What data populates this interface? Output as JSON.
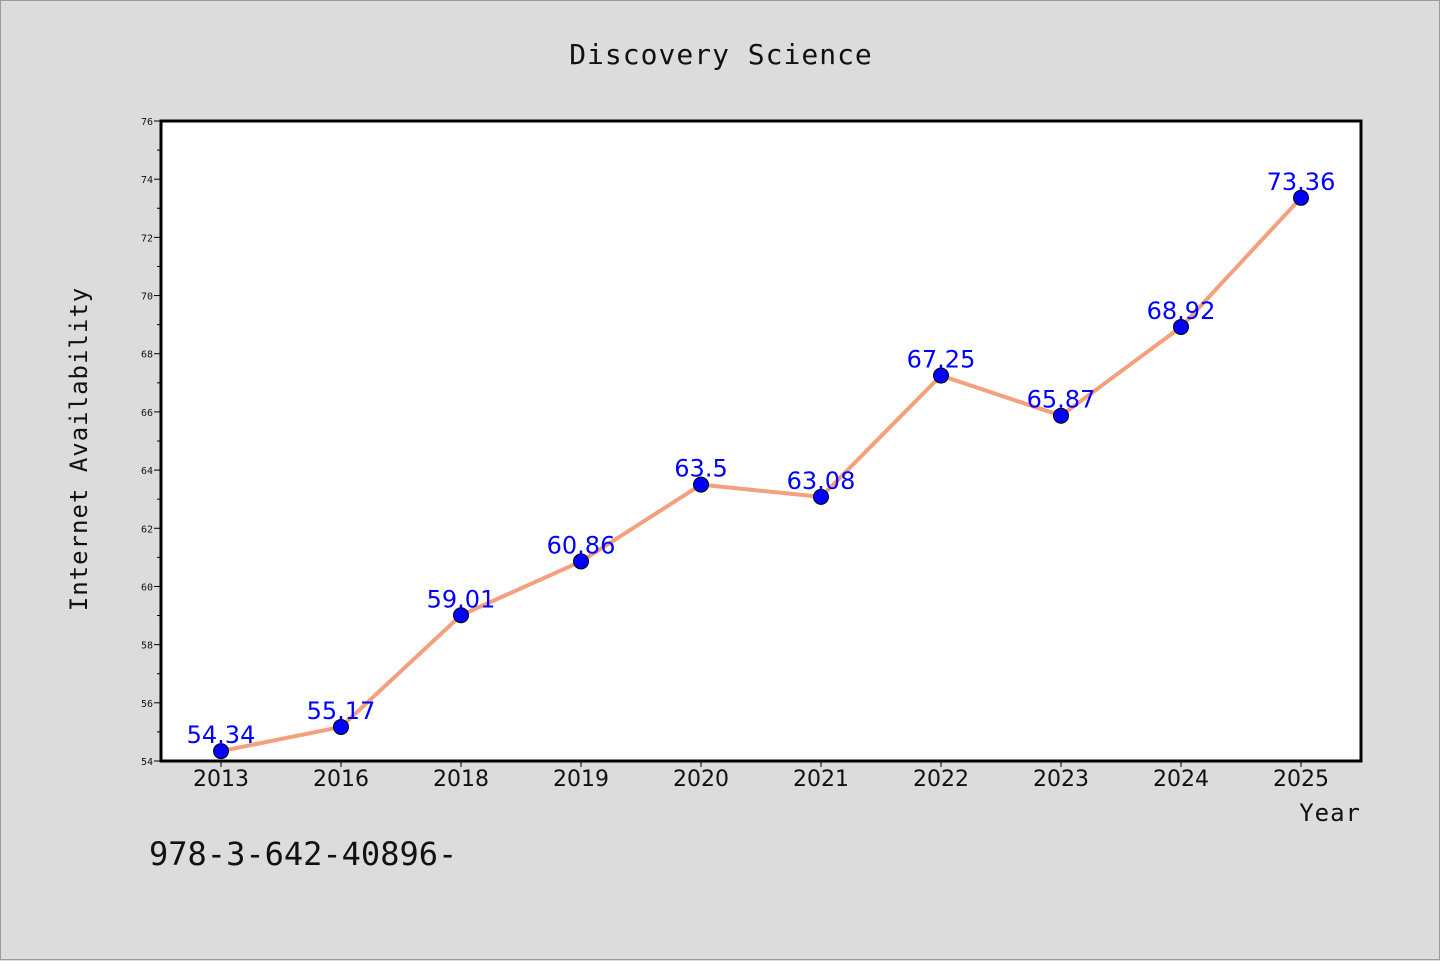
{
  "colors": {
    "background": "#dcdcdc",
    "plot_background": "#ffffff",
    "line": "#f4a07e",
    "marker": "#0000ff",
    "data_label": "#0000ff"
  },
  "footer": {
    "text": "978-3-642-40896-"
  },
  "chart_data": {
    "type": "line",
    "title": "Discovery Science",
    "xlabel": "Year",
    "ylabel": "Internet Availability",
    "categories": [
      "2013",
      "2016",
      "2018",
      "2019",
      "2020",
      "2021",
      "2022",
      "2023",
      "2024",
      "2025"
    ],
    "series": [
      {
        "values": [
          54.34,
          55.17,
          59.01,
          60.86,
          63.5,
          63.08,
          67.25,
          65.87,
          68.92,
          73.36
        ],
        "labels": [
          "54.34",
          "55.17",
          "59.01",
          "60.86",
          "63.5",
          "63.08",
          "67.25",
          "65.87",
          "68.92",
          "73.36"
        ]
      }
    ],
    "ylim": [
      54,
      76
    ],
    "yticks": [
      54,
      56,
      58,
      60,
      62,
      64,
      66,
      68,
      70,
      72,
      74,
      76
    ],
    "ytick_labels": [
      "54",
      "56",
      "58",
      "60",
      "62",
      "64",
      "66",
      "68",
      "70",
      "72",
      "74",
      "76"
    ],
    "grid": false,
    "legend": "none"
  }
}
